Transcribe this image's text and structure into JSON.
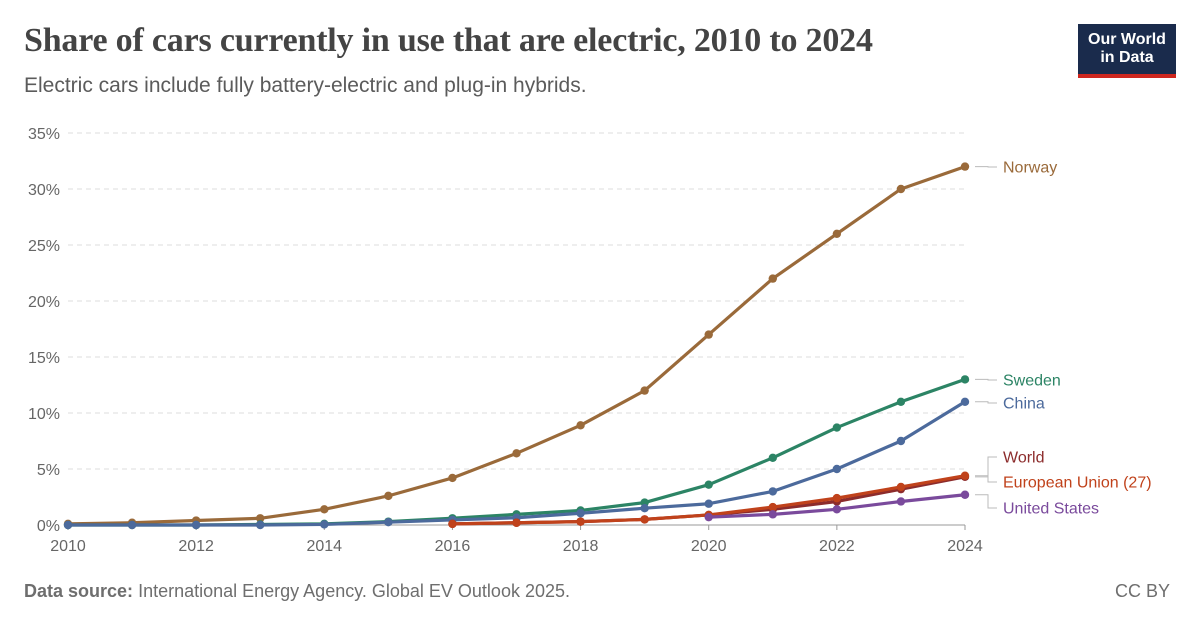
{
  "header": {
    "title": "Share of cars currently in use that are electric, 2010 to 2024",
    "subtitle": "Electric cars include fully battery-electric and plug-in hybrids.",
    "logo_line1": "Our World",
    "logo_line2": "in Data"
  },
  "footer": {
    "source_label": "Data source:",
    "source_text": "International Energy Agency. Global EV Outlook 2025.",
    "license": "CC BY"
  },
  "chart_data": {
    "type": "line",
    "title": "Share of cars currently in use that are electric, 2010 to 2024",
    "xlabel": "",
    "ylabel": "",
    "x": [
      2010,
      2011,
      2012,
      2013,
      2014,
      2015,
      2016,
      2017,
      2018,
      2019,
      2020,
      2021,
      2022,
      2023,
      2024
    ],
    "xlim": [
      2010,
      2024
    ],
    "ylim": [
      0,
      35
    ],
    "x_ticks": [
      2010,
      2012,
      2014,
      2016,
      2018,
      2020,
      2022,
      2024
    ],
    "y_ticks": [
      0,
      5,
      10,
      15,
      20,
      25,
      30,
      35
    ],
    "y_tick_labels": [
      "0%",
      "5%",
      "10%",
      "15%",
      "20%",
      "25%",
      "30%",
      "35%"
    ],
    "grid": true,
    "series": [
      {
        "name": "Norway",
        "color": "#9a6a3a",
        "x": [
          2010,
          2011,
          2012,
          2013,
          2014,
          2015,
          2016,
          2017,
          2018,
          2019,
          2020,
          2021,
          2022,
          2023,
          2024
        ],
        "values": [
          0.1,
          0.2,
          0.4,
          0.6,
          1.4,
          2.6,
          4.2,
          6.4,
          8.9,
          12.0,
          17.0,
          22.0,
          26.0,
          30.0,
          32.0
        ]
      },
      {
        "name": "Sweden",
        "color": "#2c8465",
        "x": [
          2010,
          2011,
          2012,
          2013,
          2014,
          2015,
          2016,
          2017,
          2018,
          2019,
          2020,
          2021,
          2022,
          2023,
          2024
        ],
        "values": [
          0.0,
          0.0,
          0.0,
          0.05,
          0.1,
          0.3,
          0.6,
          0.95,
          1.3,
          2.0,
          3.6,
          6.0,
          8.7,
          11.0,
          13.0
        ]
      },
      {
        "name": "China",
        "color": "#4c6a9c",
        "x": [
          2010,
          2011,
          2012,
          2013,
          2014,
          2015,
          2016,
          2017,
          2018,
          2019,
          2020,
          2021,
          2022,
          2023,
          2024
        ],
        "values": [
          0.0,
          0.0,
          0.0,
          0.0,
          0.05,
          0.25,
          0.45,
          0.65,
          1.05,
          1.5,
          1.9,
          3.0,
          5.0,
          7.5,
          11.0
        ]
      },
      {
        "name": "World",
        "color": "#8c2c2c",
        "x": [
          2016,
          2017,
          2018,
          2019,
          2020,
          2021,
          2022,
          2023,
          2024
        ],
        "values": [
          0.1,
          0.2,
          0.3,
          0.5,
          0.9,
          1.4,
          2.1,
          3.2,
          4.3
        ]
      },
      {
        "name": "European Union (27)",
        "color": "#c0421b",
        "x": [
          2016,
          2017,
          2018,
          2019,
          2020,
          2021,
          2022,
          2023,
          2024
        ],
        "values": [
          0.1,
          0.2,
          0.3,
          0.5,
          0.9,
          1.6,
          2.4,
          3.4,
          4.4
        ]
      },
      {
        "name": "United States",
        "color": "#7a4a9c",
        "x": [
          2020,
          2021,
          2022,
          2023,
          2024
        ],
        "values": [
          0.7,
          0.95,
          1.4,
          2.1,
          2.7
        ]
      }
    ]
  }
}
